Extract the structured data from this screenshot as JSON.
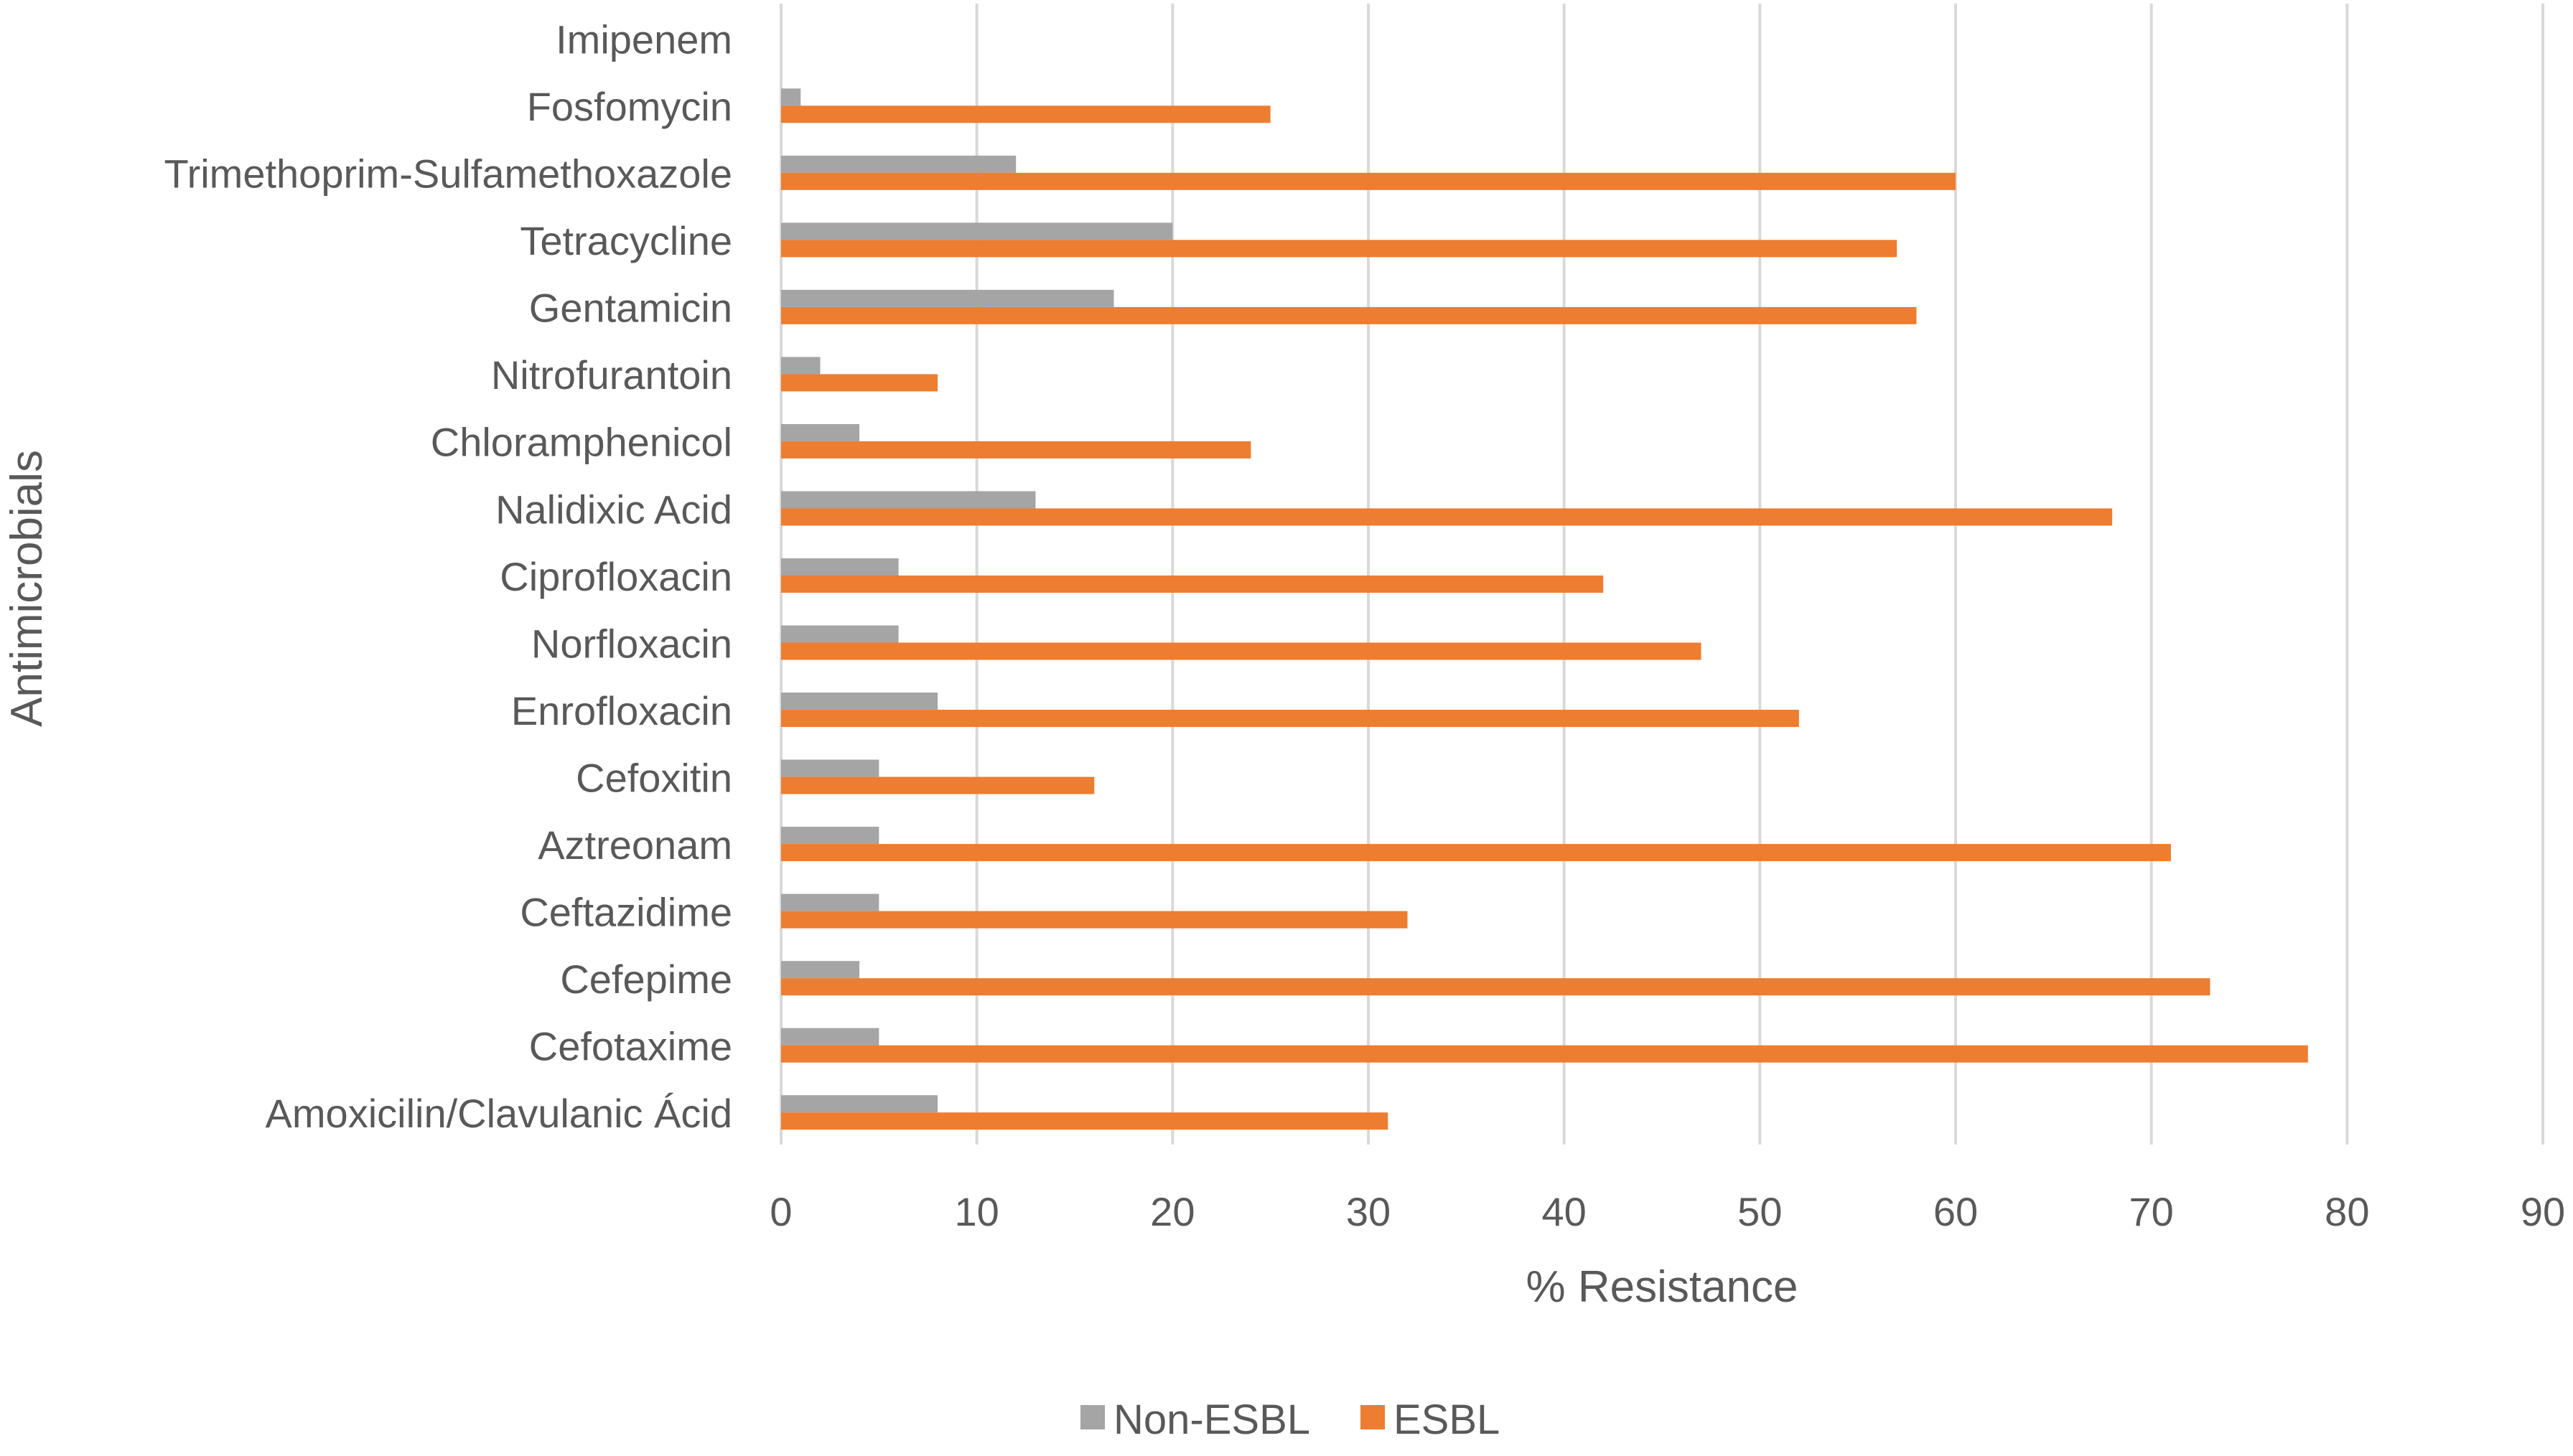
{
  "colors": {
    "non_esbl": "#a5a5a5",
    "esbl": "#ed7d31",
    "grid": "#d9d9d9",
    "text": "#595959"
  },
  "chart_data": {
    "type": "bar",
    "orientation": "horizontal",
    "title": "",
    "xlabel": "% Resistance",
    "ylabel": "Antimicrobials",
    "xlim": [
      0,
      90
    ],
    "x_ticks": [
      0,
      10,
      20,
      30,
      40,
      50,
      60,
      70,
      80,
      90
    ],
    "grid": "vertical",
    "legend_position": "bottom",
    "categories": [
      "Imipenem",
      "Fosfomycin",
      "Trimethoprim-Sulfamethoxazole",
      "Tetracycline",
      "Gentamicin",
      "Nitrofurantoin",
      "Chloramphenicol",
      "Nalidixic Acid",
      "Ciprofloxacin",
      "Norfloxacin",
      "Enrofloxacin",
      "Cefoxitin",
      "Aztreonam",
      "Ceftazidime",
      "Cefepime",
      "Cefotaxime",
      "Amoxicilin/Clavulanic Ácid"
    ],
    "series": [
      {
        "name": "Non-ESBL",
        "values": [
          0,
          1,
          12,
          20,
          17,
          2,
          4,
          13,
          6,
          6,
          8,
          5,
          5,
          5,
          4,
          5,
          8
        ]
      },
      {
        "name": "ESBL",
        "values": [
          0,
          25,
          60,
          57,
          58,
          8,
          24,
          68,
          42,
          47,
          52,
          16,
          71,
          32,
          73,
          78,
          31
        ]
      }
    ]
  }
}
